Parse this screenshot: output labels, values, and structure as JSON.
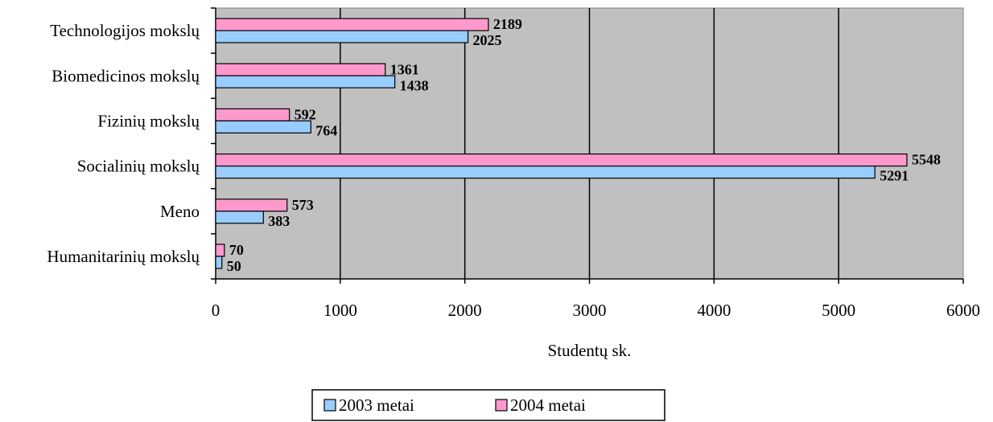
{
  "chart_data": {
    "type": "bar",
    "orientation": "horizontal",
    "categories": [
      "Technologijos mokslų",
      "Biomedicinos mokslų",
      "Fizinių mokslų",
      "Socialinių mokslų",
      "Meno",
      "Humanitarinių mokslų"
    ],
    "series": [
      {
        "name": "2003 metai",
        "color": "#99ccff",
        "values": [
          2025,
          1438,
          764,
          5291,
          383,
          50
        ]
      },
      {
        "name": "2004 metai",
        "color": "#ff99cc",
        "values": [
          2189,
          1361,
          592,
          5548,
          573,
          70
        ]
      }
    ],
    "xlabel": "Studentų sk.",
    "ylabel": "",
    "xlim": [
      0,
      6000
    ],
    "xticks": [
      0,
      1000,
      2000,
      3000,
      4000,
      5000,
      6000
    ],
    "grid": true,
    "plot_background": "#c0c0c0",
    "legend_position": "bottom",
    "data_labels": true
  }
}
